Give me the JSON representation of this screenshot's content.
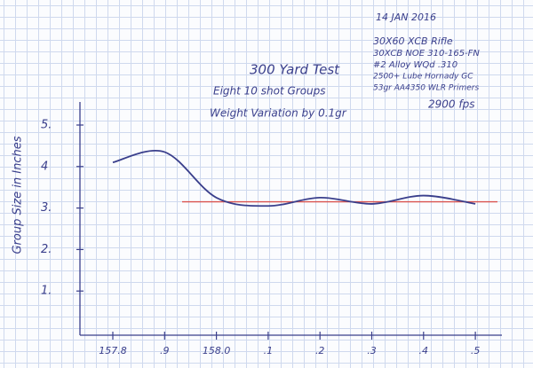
{
  "chart_data": {
    "type": "line",
    "title": "300 Yard Test",
    "subtitle": [
      "Eight 10 shot Groups",
      "Weight Variation by 0.1gr"
    ],
    "notes": [
      "14 JAN 2016",
      "30X60 XCB Rifle",
      "30XCB NOE 310-165-FN",
      "#2 Alloy WQd .310",
      "2500+ Lube Hornady GC",
      "53gr AA4350 WLR Primers",
      "2900 fps"
    ],
    "y_label": "Group Size in Inches",
    "categories": [
      "157.8",
      ".9",
      "158.0",
      ".1",
      ".2",
      ".3",
      ".4",
      ".5"
    ],
    "values": [
      4.1,
      4.35,
      3.25,
      3.05,
      3.25,
      3.1,
      3.3,
      3.1
    ],
    "color": "#3a3f8c",
    "reference_line": {
      "value": 3.15,
      "color": "#d9534f"
    },
    "ylim": [
      0,
      5.5
    ],
    "yticks": [
      {
        "value": 1,
        "label": "1."
      },
      {
        "value": 2,
        "label": "2."
      },
      {
        "value": 3,
        "label": "3."
      },
      4,
      {
        "value": 5,
        "label": "5."
      }
    ]
  }
}
